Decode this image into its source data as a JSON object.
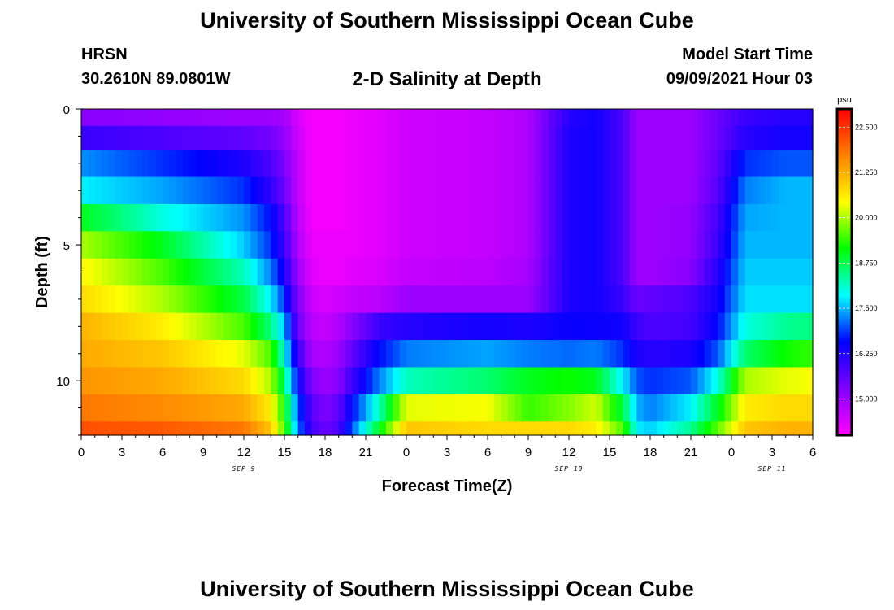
{
  "header": {
    "title_top": "University of Southern Mississippi Ocean Cube",
    "title_bottom": "University of Southern Mississippi Ocean Cube",
    "station": "HRSN",
    "coordinates": "30.2610N  89.0801W",
    "subtitle": "2-D Salinity at Depth",
    "model_label": "Model Start Time",
    "model_time": "09/09/2021 Hour 03"
  },
  "chart_data": {
    "type": "heatmap",
    "title": "2-D Salinity at Depth",
    "xlabel": "Forecast Time(Z)",
    "ylabel": "Depth (ft)",
    "colorbar_unit": "psu",
    "x_range_hours": [
      0,
      54
    ],
    "y_range_ft": [
      0,
      12
    ],
    "x_ticks": [
      "0",
      "3",
      "6",
      "9",
      "12",
      "15",
      "18",
      "21",
      "0",
      "3",
      "6",
      "9",
      "12",
      "15",
      "18",
      "21",
      "0",
      "3",
      "6"
    ],
    "y_ticks": [
      0,
      5,
      10
    ],
    "date_labels": [
      {
        "text": "SEP 9",
        "hour": 12
      },
      {
        "text": "SEP 10",
        "hour": 36
      },
      {
        "text": "SEP 11",
        "hour": 51
      }
    ],
    "colorbar_range": [
      14.0,
      23.0
    ],
    "colorbar_ticks": [
      "22.500",
      "21.250",
      "20.000",
      "18.750",
      "17.500",
      "16.250",
      "15.000"
    ],
    "colorbar_tick_values": [
      22.5,
      21.25,
      20.0,
      18.75,
      17.5,
      16.25,
      15.0
    ],
    "depth_levels_ft": [
      0.25,
      1.0,
      2.0,
      3.0,
      4.0,
      5.0,
      6.0,
      7.0,
      8.0,
      9.0,
      10.0,
      11.0,
      12.0
    ],
    "time_hours": [
      0,
      6,
      12,
      14,
      15,
      16,
      17,
      18,
      19,
      20,
      22,
      24,
      30,
      33,
      36,
      38,
      40,
      41,
      42,
      45,
      47,
      49,
      52,
      54
    ],
    "salinity_psu": [
      [
        15.2,
        15.1,
        15.0,
        15.0,
        14.9,
        14.4,
        14.1,
        14.1,
        14.1,
        14.2,
        14.3,
        14.5,
        14.6,
        14.8,
        16.2,
        16.4,
        15.8,
        15.0,
        15.0,
        15.0,
        15.5,
        16.0,
        16.2,
        16.2
      ],
      [
        16.0,
        15.8,
        15.6,
        15.4,
        15.1,
        14.5,
        14.1,
        14.1,
        14.1,
        14.2,
        14.3,
        14.5,
        14.6,
        14.8,
        16.3,
        16.4,
        15.8,
        15.0,
        15.0,
        15.0,
        15.5,
        16.2,
        16.4,
        16.4
      ],
      [
        17.3,
        16.8,
        16.3,
        15.8,
        15.3,
        14.6,
        14.1,
        14.1,
        14.1,
        14.2,
        14.3,
        14.5,
        14.6,
        14.8,
        16.3,
        16.4,
        15.8,
        15.0,
        15.0,
        15.0,
        15.6,
        16.8,
        17.0,
        17.0
      ],
      [
        17.8,
        17.4,
        16.8,
        16.1,
        15.5,
        14.6,
        14.1,
        14.1,
        14.1,
        14.2,
        14.3,
        14.5,
        14.6,
        14.8,
        16.3,
        16.4,
        15.8,
        15.0,
        15.0,
        15.0,
        15.7,
        17.2,
        17.5,
        17.5
      ],
      [
        19.0,
        18.0,
        17.3,
        16.6,
        15.8,
        14.7,
        14.1,
        14.1,
        14.1,
        14.2,
        14.3,
        14.5,
        14.6,
        14.8,
        16.3,
        16.4,
        15.8,
        15.0,
        15.0,
        15.1,
        15.9,
        17.4,
        17.5,
        17.5
      ],
      [
        20.0,
        19.0,
        17.6,
        16.8,
        16.0,
        14.8,
        14.2,
        14.2,
        14.2,
        14.2,
        14.3,
        14.5,
        14.6,
        14.8,
        16.3,
        16.4,
        15.8,
        15.0,
        15.0,
        15.1,
        16.0,
        17.5,
        17.5,
        17.5
      ],
      [
        20.5,
        19.5,
        18.2,
        17.2,
        16.3,
        15.0,
        14.3,
        14.2,
        14.2,
        14.3,
        14.4,
        14.6,
        14.7,
        14.9,
        16.3,
        16.4,
        15.8,
        15.0,
        15.0,
        15.2,
        16.2,
        17.6,
        17.6,
        17.6
      ],
      [
        20.8,
        20.0,
        18.8,
        17.8,
        16.8,
        15.3,
        14.5,
        14.4,
        14.5,
        14.6,
        14.7,
        15.0,
        15.0,
        15.0,
        16.3,
        16.4,
        16.0,
        15.5,
        15.6,
        15.8,
        16.4,
        17.7,
        17.7,
        17.7
      ],
      [
        21.2,
        20.6,
        19.5,
        18.5,
        17.5,
        15.5,
        14.7,
        14.6,
        14.8,
        15.2,
        16.0,
        16.2,
        16.4,
        16.3,
        16.5,
        16.5,
        16.4,
        16.0,
        15.8,
        15.9,
        16.6,
        18.0,
        18.4,
        18.5
      ],
      [
        21.3,
        21.0,
        20.3,
        19.5,
        18.0,
        16.0,
        14.9,
        14.8,
        15.0,
        15.6,
        16.6,
        17.2,
        17.4,
        17.2,
        17.1,
        17.2,
        16.8,
        16.3,
        16.2,
        16.3,
        17.0,
        18.6,
        19.2,
        19.4
      ],
      [
        21.5,
        21.3,
        20.8,
        20.0,
        18.6,
        16.5,
        15.3,
        15.0,
        15.2,
        16.0,
        17.2,
        18.2,
        18.6,
        19.0,
        19.2,
        19.0,
        17.8,
        17.0,
        16.8,
        17.0,
        18.0,
        20.0,
        20.3,
        20.4
      ],
      [
        21.8,
        21.6,
        21.3,
        20.6,
        19.2,
        17.0,
        15.7,
        15.3,
        15.6,
        16.6,
        18.2,
        20.3,
        20.4,
        19.4,
        19.8,
        20.2,
        18.8,
        17.5,
        17.2,
        17.8,
        19.0,
        20.6,
        20.8,
        20.8
      ],
      [
        22.2,
        22.1,
        21.8,
        21.0,
        19.5,
        17.2,
        15.9,
        15.5,
        15.8,
        17.0,
        19.0,
        21.0,
        20.8,
        20.8,
        20.8,
        20.6,
        19.5,
        17.8,
        17.6,
        18.4,
        19.6,
        21.0,
        21.2,
        21.2
      ]
    ]
  },
  "colors": {
    "axis": "#000000",
    "background": "#ffffff",
    "colorbar_border": "#000000",
    "colormap": [
      "#ff00ff",
      "#8000ff",
      "#0000ff",
      "#00ffff",
      "#00ff00",
      "#ffff00",
      "#ff8000",
      "#ff0000"
    ]
  }
}
